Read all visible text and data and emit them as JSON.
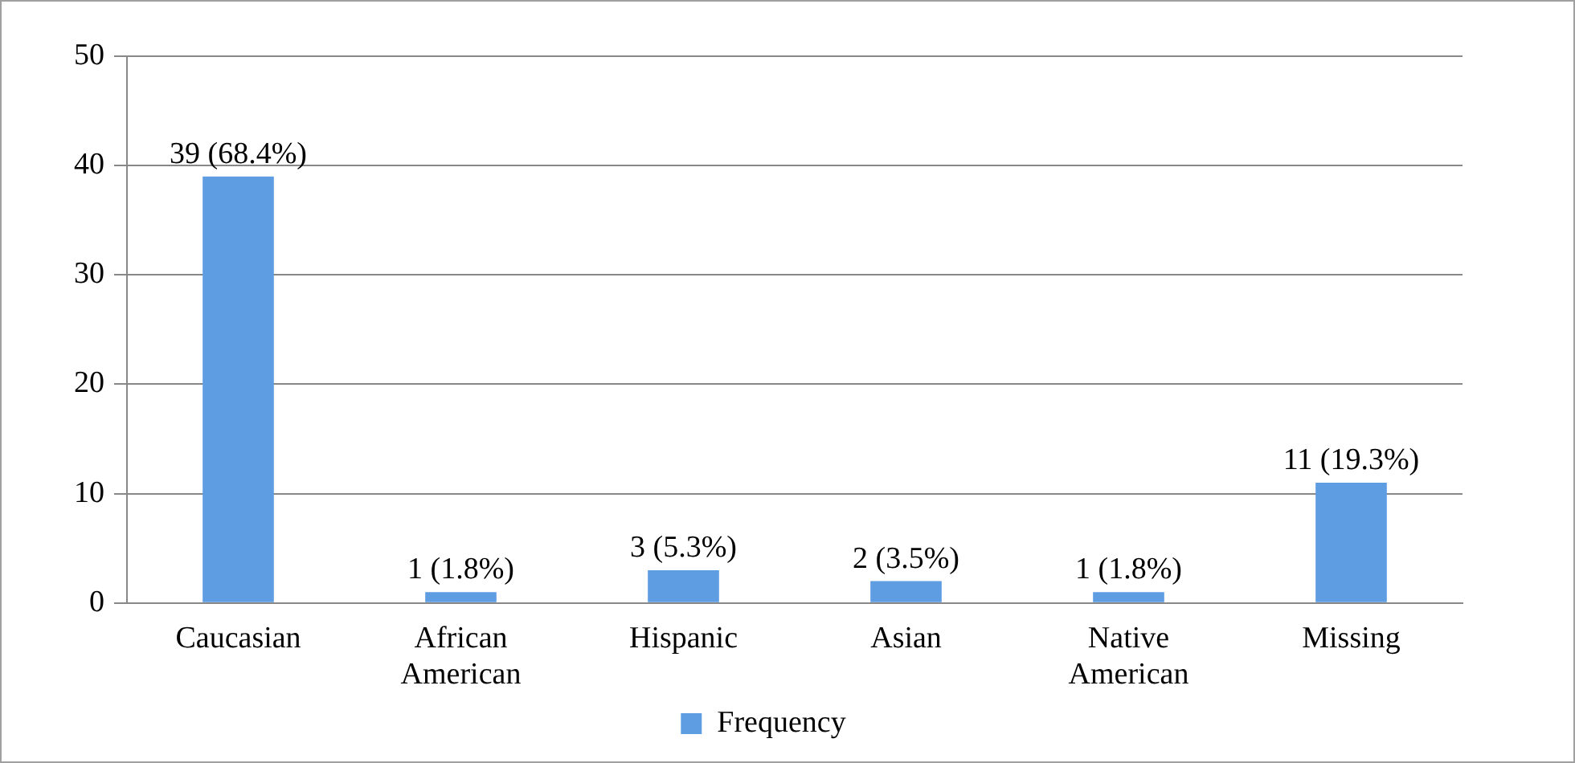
{
  "chart_data": {
    "type": "bar",
    "categories": [
      "Caucasian",
      "African American",
      "Hispanic",
      "Asian",
      "Native American",
      "Missing"
    ],
    "series": [
      {
        "name": "Frequency",
        "color": "#5f9de3",
        "values": [
          39,
          1,
          3,
          2,
          1,
          11
        ],
        "value_labels": [
          "39 (68.4%)",
          "1 (1.8%)",
          "3 (5.3%)",
          "2 (3.5%)",
          "1 (1.8%)",
          "11 (19.3%)"
        ]
      }
    ],
    "ylim": [
      0,
      50
    ],
    "yticks": [
      0,
      10,
      20,
      30,
      40,
      50
    ],
    "grid": "y",
    "legend": "bottom"
  }
}
